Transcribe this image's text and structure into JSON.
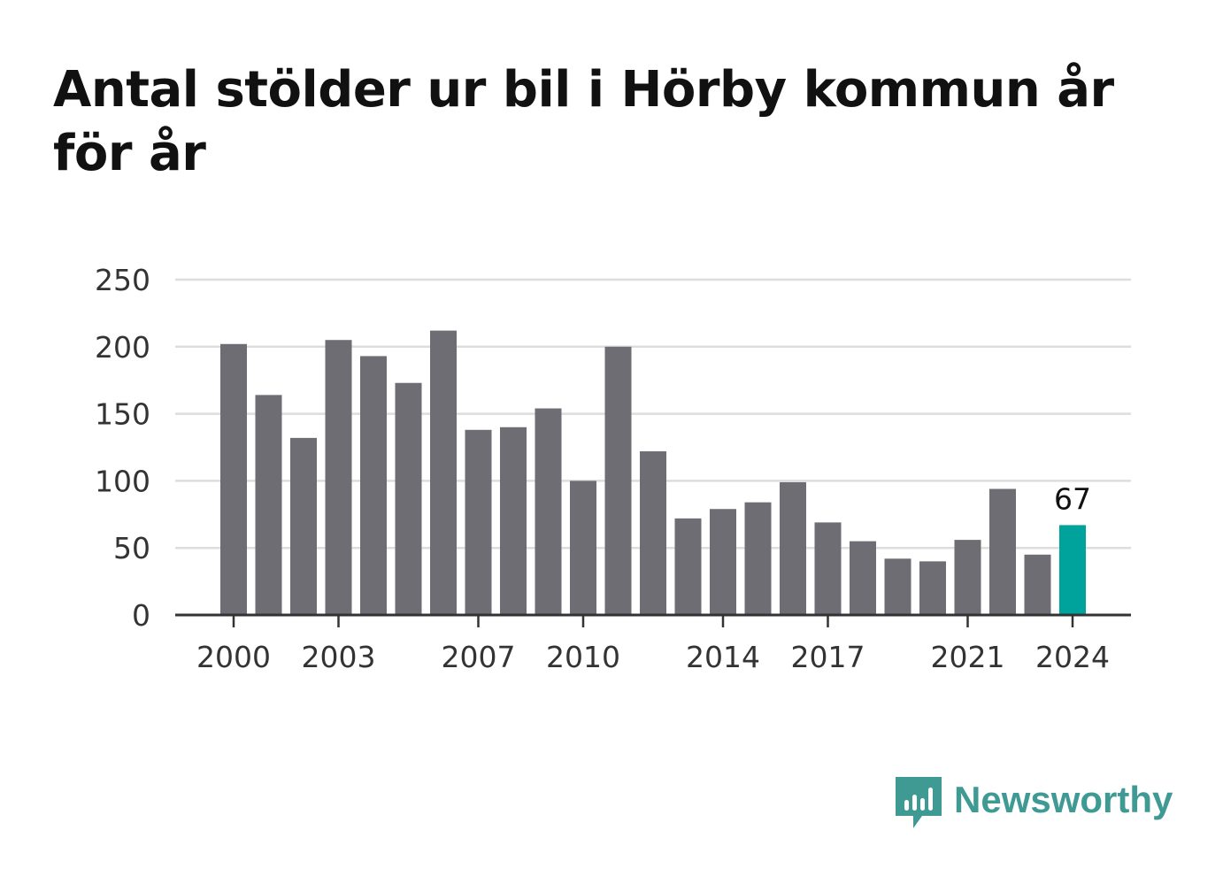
{
  "title": "Antal stölder ur bil i Hörby kommun år för år",
  "brand": {
    "name": "Newsworthy",
    "icon": "newsworthy-logo-icon",
    "color": "#3f9a94"
  },
  "colors": {
    "bar": "#6e6d73",
    "highlight": "#00a39b",
    "grid": "#dddddd",
    "axis": "#333333"
  },
  "chart_data": {
    "type": "bar",
    "title": "Antal stölder ur bil i Hörby kommun år för år",
    "xlabel": "",
    "ylabel": "",
    "categories": [
      "2000",
      "2001",
      "2002",
      "2003",
      "2004",
      "2005",
      "2006",
      "2007",
      "2008",
      "2009",
      "2010",
      "2011",
      "2012",
      "2013",
      "2014",
      "2015",
      "2016",
      "2017",
      "2018",
      "2019",
      "2020",
      "2021",
      "2022",
      "2023",
      "2024"
    ],
    "values": [
      202,
      164,
      132,
      205,
      193,
      173,
      212,
      138,
      140,
      154,
      100,
      200,
      122,
      72,
      79,
      84,
      99,
      69,
      55,
      42,
      40,
      56,
      94,
      45,
      67
    ],
    "x_tick_labels": [
      "2000",
      "2003",
      "2007",
      "2010",
      "2014",
      "2017",
      "2021",
      "2024"
    ],
    "y_ticks": [
      0,
      50,
      100,
      150,
      200,
      250
    ],
    "ylim": [
      0,
      250
    ],
    "grid": true,
    "highlight": {
      "category": "2024",
      "label": "67"
    }
  }
}
